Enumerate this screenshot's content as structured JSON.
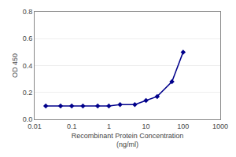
{
  "chart_data": {
    "type": "line",
    "x": [
      0.02,
      0.05,
      0.1,
      0.2,
      0.5,
      1,
      2,
      5,
      10,
      20,
      50,
      100
    ],
    "values": [
      0.1,
      0.1,
      0.1,
      0.1,
      0.1,
      0.1,
      0.11,
      0.11,
      0.14,
      0.17,
      0.28,
      0.5
    ],
    "xlabel": "Recombinant Protein Concentration\n(ng/ml)",
    "ylabel": "OD 450",
    "log": "x",
    "xlim": [
      0.01,
      1000
    ],
    "ylim": [
      0.0,
      0.8
    ],
    "xticks": [
      0.01,
      0.1,
      1,
      10,
      100,
      1000
    ],
    "yticks": [
      {
        "value": 0.0,
        "label": "0.0"
      },
      0.2,
      0.4,
      0.6,
      0.8
    ],
    "grid": "y",
    "color": "#00008B",
    "marker": "diamond",
    "line_style": "solid"
  }
}
